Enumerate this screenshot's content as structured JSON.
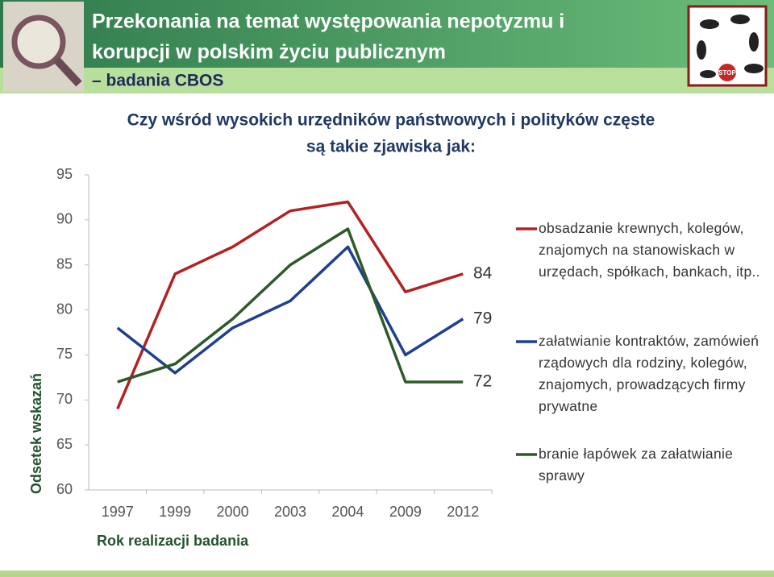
{
  "header": {
    "title_lines": [
      "Przekonania na temat występowania nepotyzmu i",
      "korupcji w polskim życiu publicznym"
    ],
    "subtitle": "– badania CBOS",
    "logo_text": "STOP"
  },
  "chart_data": {
    "type": "line",
    "title": [
      "Czy wśród wysokich urzędników państwowych i polityków częste",
      "są takie zjawiska jak:"
    ],
    "x_label": "Rok realizacji badania",
    "y_label": "Odsetek wskazań",
    "categories": [
      "1997",
      "1999",
      "2000",
      "2003",
      "2004",
      "2009",
      "2012"
    ],
    "series": [
      {
        "name": "obsadzanie krewnych, kolegów, znajomych na stanowiskach w urzędach, spółkach, bankach, itp..",
        "color": "#b22222",
        "values": [
          69,
          84,
          87,
          91,
          92,
          82,
          84
        ]
      },
      {
        "name": "załatwianie kontraktów, zamówień rządowych dla rodziny, kolegów, znajomych, prowadzących firmy prywatne",
        "color": "#1f3f8f",
        "values": [
          78,
          73,
          78,
          81,
          87,
          75,
          79
        ]
      },
      {
        "name": "branie łapówek za załatwianie sprawy",
        "color": "#2e5a2a",
        "values": [
          72,
          74,
          79,
          85,
          89,
          72,
          72
        ]
      }
    ],
    "ylim": [
      60,
      95
    ],
    "yticks": [
      60,
      65,
      70,
      75,
      80,
      85,
      90,
      95
    ],
    "grid": false,
    "legend": "right"
  }
}
